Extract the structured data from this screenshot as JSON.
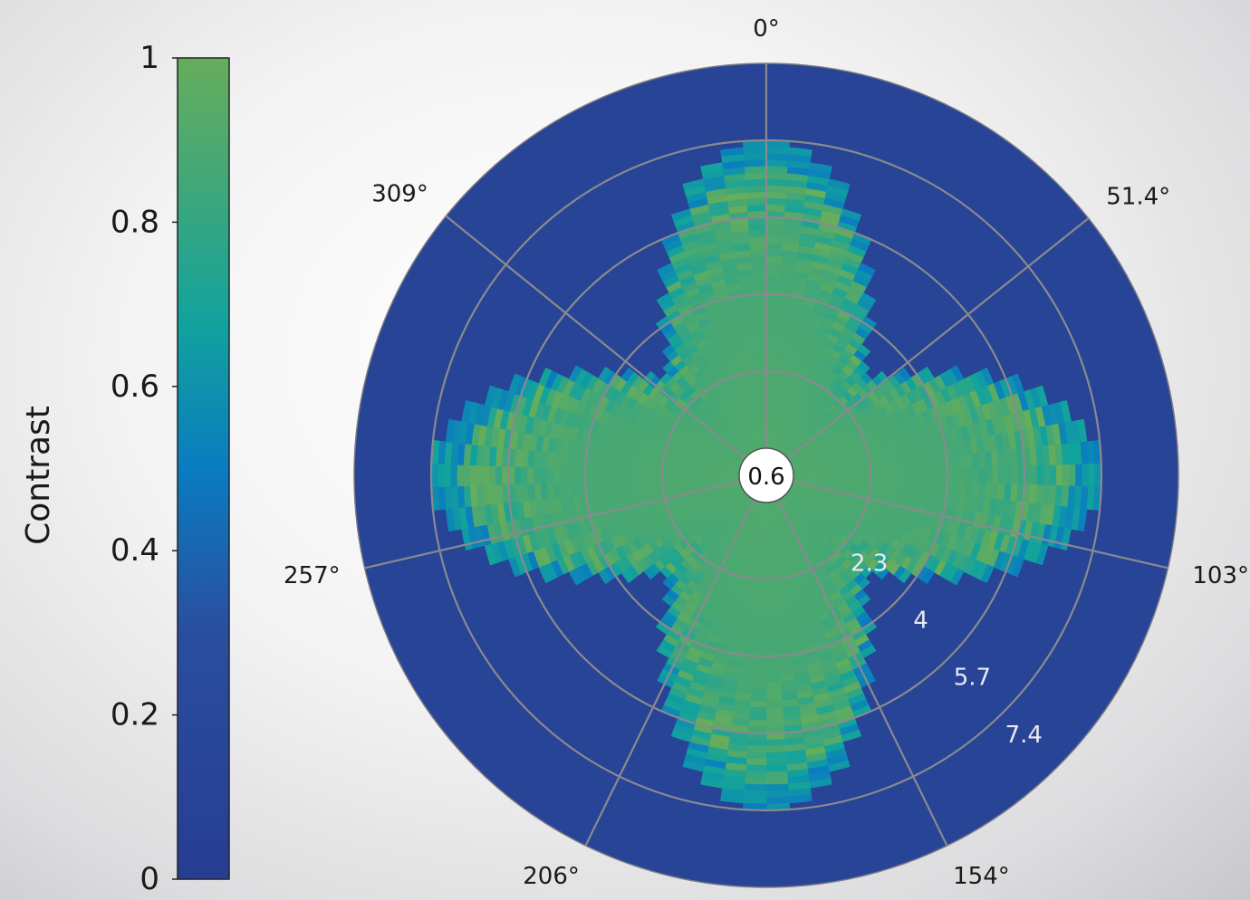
{
  "chart_data": {
    "type": "heatmap",
    "subtype": "polar",
    "colorbar": {
      "label": "Contrast",
      "range": [
        0,
        1
      ],
      "ticks": [
        "0",
        "0.2",
        "0.4",
        "0.6",
        "0.8",
        "1"
      ],
      "colors": [
        "#263d92",
        "#2a54a3",
        "#0a7cc0",
        "#12a39d",
        "#3fa77a",
        "#66ad5c"
      ]
    },
    "radial_ticks": [
      "0.6",
      "2.3",
      "4",
      "5.7",
      "7.4"
    ],
    "radial_values": [
      0.6,
      2.3,
      4,
      5.7,
      7.4
    ],
    "radial_max": 9.1,
    "angle_ticks": [
      "0°",
      "51.4°",
      "103°",
      "154°",
      "206°",
      "257°",
      "309°"
    ],
    "angle_values": [
      0,
      51.4,
      103,
      154,
      206,
      257,
      309
    ],
    "pattern": {
      "lobe_directions_deg": [
        0,
        90,
        180,
        270
      ],
      "peak_contrast": 0.92,
      "background_contrast": 0.12,
      "extent_on_lobe_axis": 7.4,
      "extent_between_lobes": 3.2
    }
  }
}
